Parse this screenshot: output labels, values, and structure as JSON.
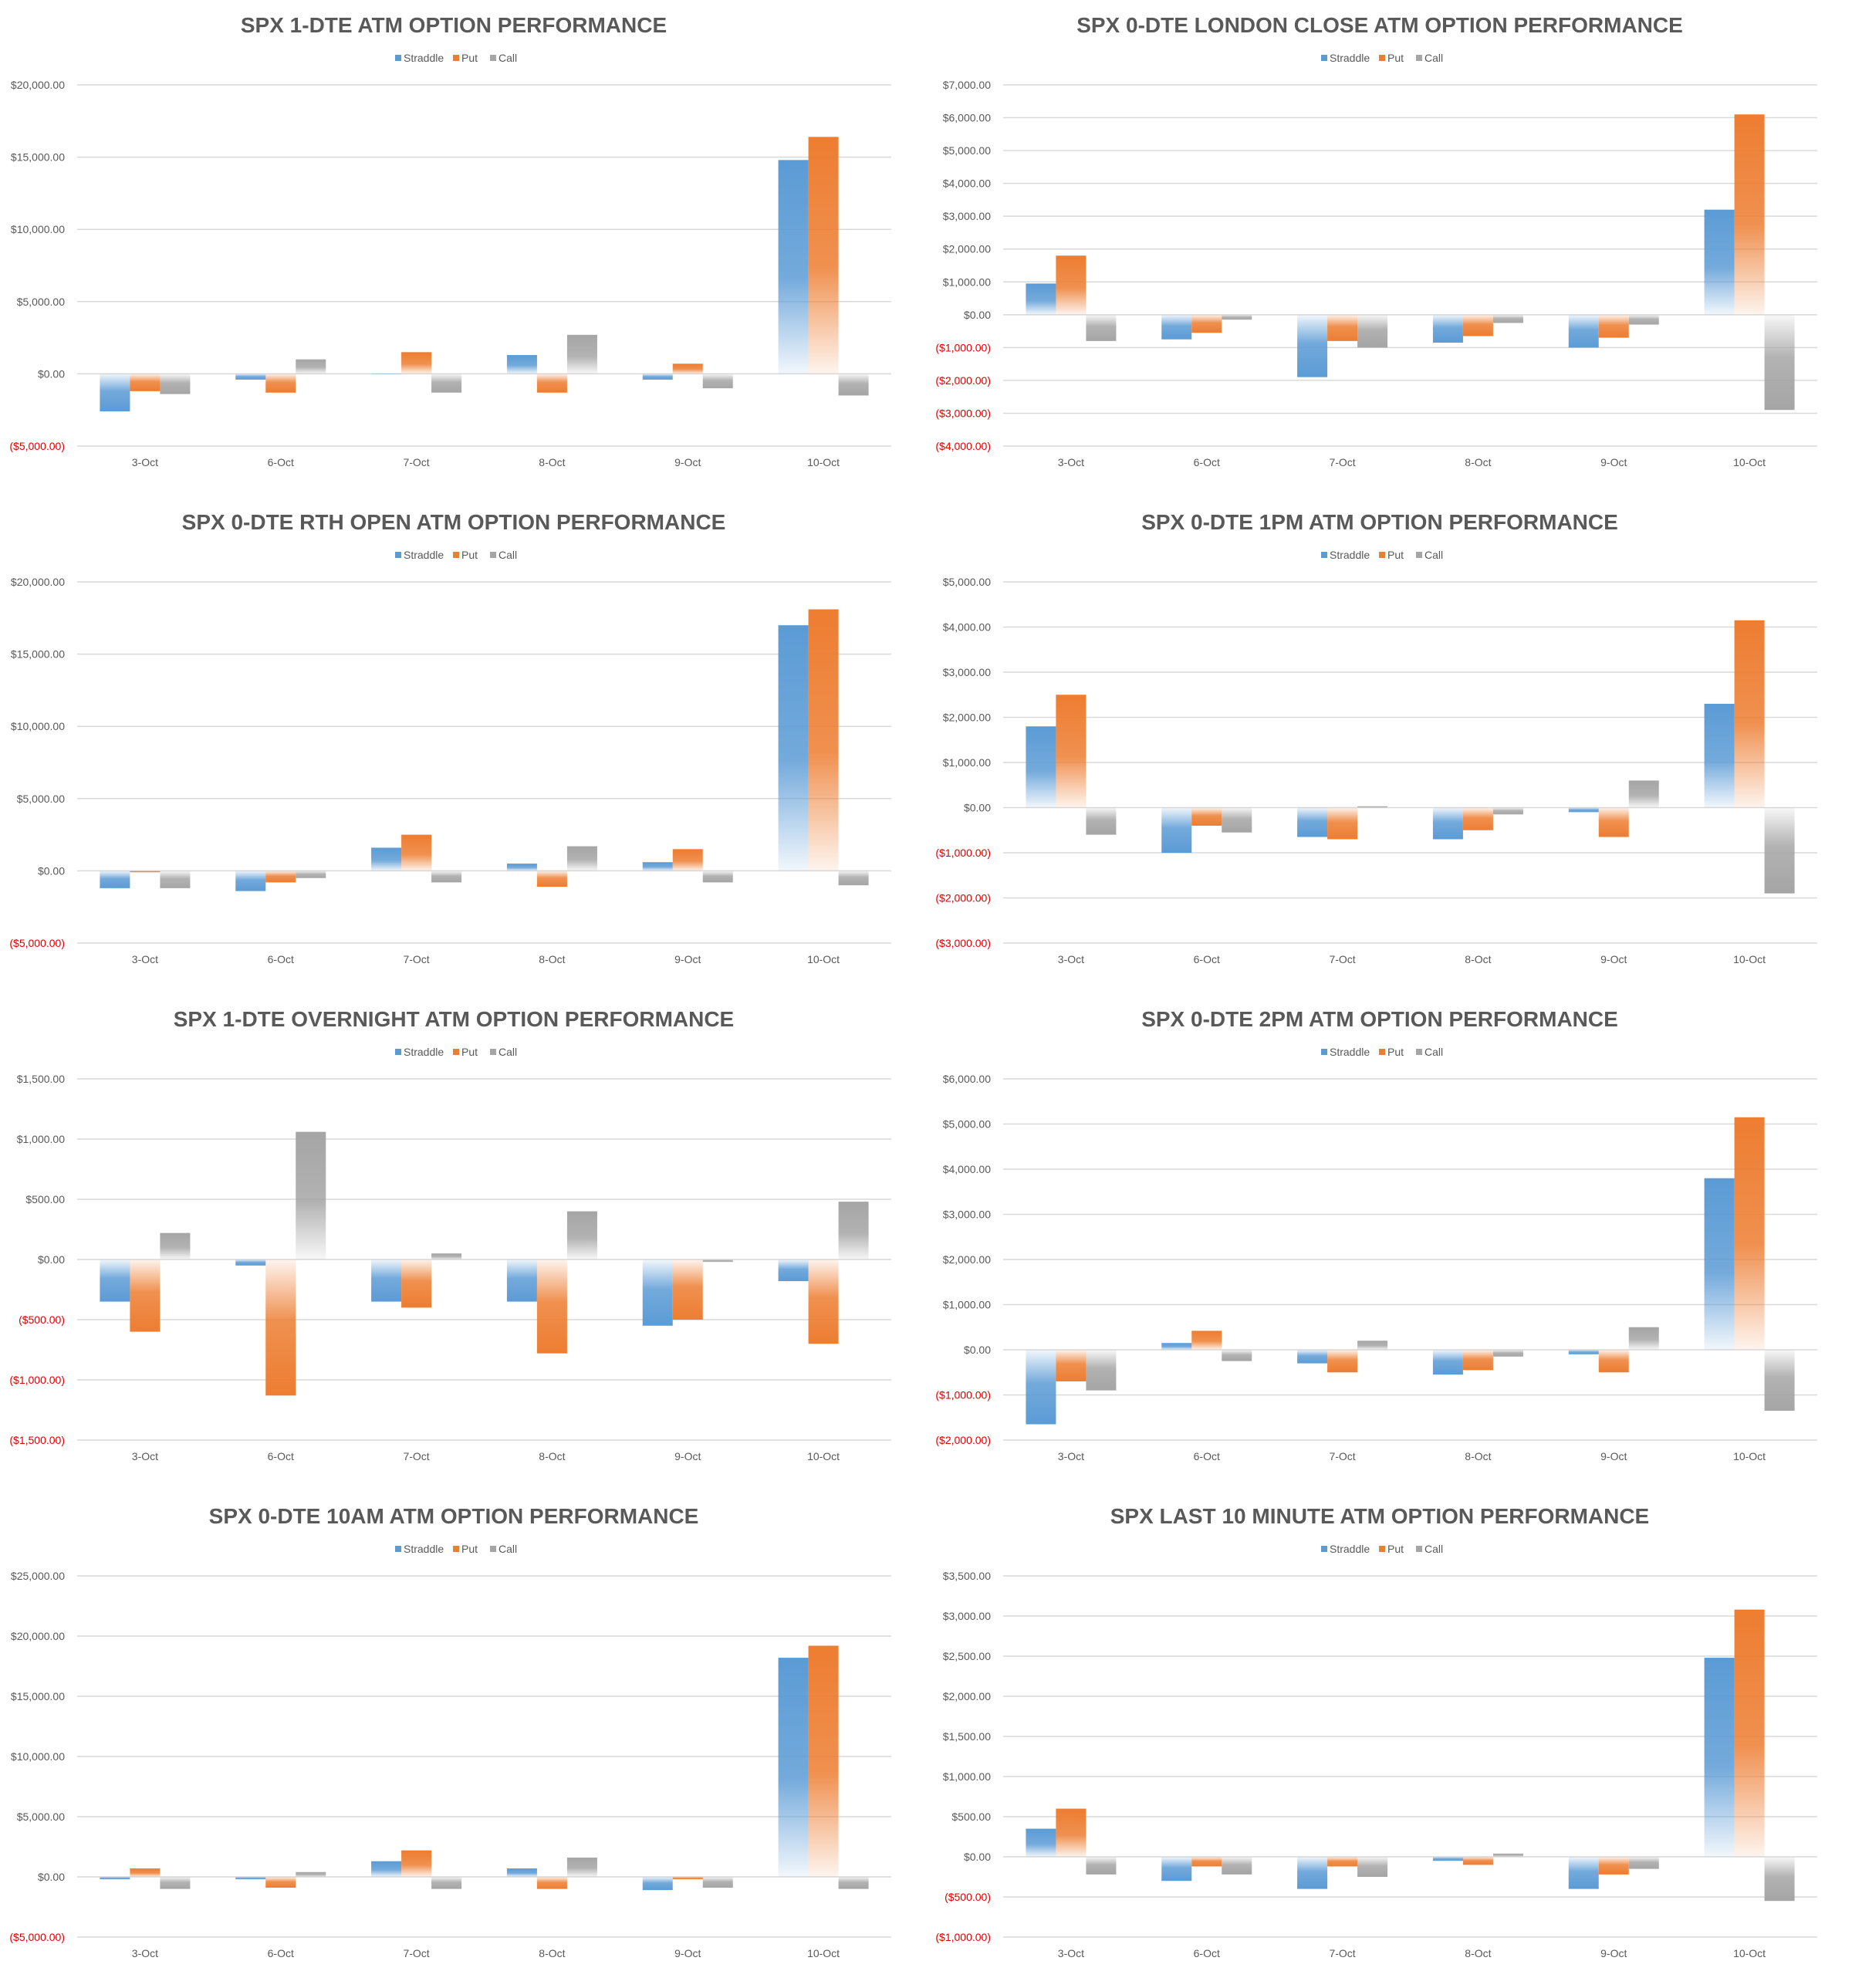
{
  "colors": {
    "straddle": "#5b9bd5",
    "put": "#ed7d31",
    "call": "#a5a5a5",
    "grid": "#d9d9d9",
    "text": "#595959",
    "negative": "#e00000"
  },
  "legend": [
    "Straddle",
    "Put",
    "Call"
  ],
  "chart_data": [
    {
      "type": "bar",
      "title": "SPX 1-DTE ATM OPTION PERFORMANCE",
      "categories": [
        "3-Oct",
        "6-Oct",
        "7-Oct",
        "8-Oct",
        "9-Oct",
        "10-Oct"
      ],
      "ylim": [
        -5000,
        20000
      ],
      "yticks": [
        20000,
        15000,
        10000,
        5000,
        0,
        -5000
      ],
      "ytick_labels": [
        "$20,000.00",
        "$15,000.00",
        "$10,000.00",
        "$5,000.00",
        "$0.00",
        "($5,000.00)"
      ],
      "series": [
        {
          "name": "Straddle",
          "values": [
            -2600,
            -400,
            0,
            1300,
            -400,
            14800
          ]
        },
        {
          "name": "Put",
          "values": [
            -1200,
            -1300,
            1500,
            -1300,
            700,
            16400
          ]
        },
        {
          "name": "Call",
          "values": [
            -1400,
            1000,
            -1300,
            2700,
            -1000,
            -1500
          ]
        }
      ]
    },
    {
      "type": "bar",
      "title": "SPX 0-DTE  LONDON CLOSE ATM OPTION PERFORMANCE",
      "categories": [
        "3-Oct",
        "6-Oct",
        "7-Oct",
        "8-Oct",
        "9-Oct",
        "10-Oct"
      ],
      "ylim": [
        -4000,
        7000
      ],
      "yticks": [
        7000,
        6000,
        5000,
        4000,
        3000,
        2000,
        1000,
        0,
        -1000,
        -2000,
        -3000,
        -4000
      ],
      "ytick_labels": [
        "$7,000.00",
        "$6,000.00",
        "$5,000.00",
        "$4,000.00",
        "$3,000.00",
        "$2,000.00",
        "$1,000.00",
        "$0.00",
        "($1,000.00)",
        "($2,000.00)",
        "($3,000.00)",
        "($4,000.00)"
      ],
      "series": [
        {
          "name": "Straddle",
          "values": [
            950,
            -750,
            -1900,
            -850,
            -1000,
            3200
          ]
        },
        {
          "name": "Put",
          "values": [
            1800,
            -550,
            -800,
            -650,
            -700,
            6100
          ]
        },
        {
          "name": "Call",
          "values": [
            -800,
            -150,
            -1000,
            -250,
            -300,
            -2900
          ]
        }
      ]
    },
    {
      "type": "bar",
      "title": "SPX 0-DTE RTH OPEN ATM OPTION PERFORMANCE",
      "categories": [
        "3-Oct",
        "6-Oct",
        "7-Oct",
        "8-Oct",
        "9-Oct",
        "10-Oct"
      ],
      "ylim": [
        -5000,
        20000
      ],
      "yticks": [
        20000,
        15000,
        10000,
        5000,
        0,
        -5000
      ],
      "ytick_labels": [
        "$20,000.00",
        "$15,000.00",
        "$10,000.00",
        "$5,000.00",
        "$0.00",
        "($5,000.00)"
      ],
      "series": [
        {
          "name": "Straddle",
          "values": [
            -1200,
            -1400,
            1600,
            500,
            600,
            17000
          ]
        },
        {
          "name": "Put",
          "values": [
            -100,
            -800,
            2500,
            -1100,
            1500,
            18100
          ]
        },
        {
          "name": "Call",
          "values": [
            -1200,
            -500,
            -800,
            1700,
            -800,
            -1000
          ]
        }
      ]
    },
    {
      "type": "bar",
      "title": "SPX 0-DTE 1PM ATM OPTION PERFORMANCE",
      "categories": [
        "3-Oct",
        "6-Oct",
        "7-Oct",
        "8-Oct",
        "9-Oct",
        "10-Oct"
      ],
      "ylim": [
        -3000,
        5000
      ],
      "yticks": [
        5000,
        4000,
        3000,
        2000,
        1000,
        0,
        -1000,
        -2000,
        -3000
      ],
      "ytick_labels": [
        "$5,000.00",
        "$4,000.00",
        "$3,000.00",
        "$2,000.00",
        "$1,000.00",
        "$0.00",
        "($1,000.00)",
        "($2,000.00)",
        "($3,000.00)"
      ],
      "series": [
        {
          "name": "Straddle",
          "values": [
            1800,
            -1000,
            -650,
            -700,
            -100,
            2300
          ]
        },
        {
          "name": "Put",
          "values": [
            2500,
            -400,
            -700,
            -500,
            -650,
            4150
          ]
        },
        {
          "name": "Call",
          "values": [
            -600,
            -550,
            30,
            -150,
            600,
            -1900
          ]
        }
      ]
    },
    {
      "type": "bar",
      "title": "SPX 1-DTE OVERNIGHT ATM OPTION PERFORMANCE",
      "categories": [
        "3-Oct",
        "6-Oct",
        "7-Oct",
        "8-Oct",
        "9-Oct",
        "10-Oct"
      ],
      "ylim": [
        -1500,
        1500
      ],
      "yticks": [
        1500,
        1000,
        500,
        0,
        -500,
        -1000,
        -1500
      ],
      "ytick_labels": [
        "$1,500.00",
        "$1,000.00",
        "$500.00",
        "$0.00",
        "($500.00)",
        "($1,000.00)",
        "($1,500.00)"
      ],
      "series": [
        {
          "name": "Straddle",
          "values": [
            -350,
            -50,
            -350,
            -350,
            -550,
            -180
          ]
        },
        {
          "name": "Put",
          "values": [
            -600,
            -1130,
            -400,
            -780,
            -500,
            -700
          ]
        },
        {
          "name": "Call",
          "values": [
            220,
            1060,
            50,
            400,
            -20,
            480
          ]
        }
      ]
    },
    {
      "type": "bar",
      "title": "SPX 0-DTE 2PM ATM OPTION PERFORMANCE",
      "categories": [
        "3-Oct",
        "6-Oct",
        "7-Oct",
        "8-Oct",
        "9-Oct",
        "10-Oct"
      ],
      "ylim": [
        -2000,
        6000
      ],
      "yticks": [
        6000,
        5000,
        4000,
        3000,
        2000,
        1000,
        0,
        -1000,
        -2000
      ],
      "ytick_labels": [
        "$6,000.00",
        "$5,000.00",
        "$4,000.00",
        "$3,000.00",
        "$2,000.00",
        "$1,000.00",
        "$0.00",
        "($1,000.00)",
        "($2,000.00)"
      ],
      "series": [
        {
          "name": "Straddle",
          "values": [
            -1650,
            150,
            -300,
            -550,
            -100,
            3800
          ]
        },
        {
          "name": "Put",
          "values": [
            -700,
            420,
            -500,
            -450,
            -500,
            5150
          ]
        },
        {
          "name": "Call",
          "values": [
            -900,
            -250,
            200,
            -150,
            500,
            -1350
          ]
        }
      ]
    },
    {
      "type": "bar",
      "title": "SPX 0-DTE 10AM ATM OPTION PERFORMANCE",
      "categories": [
        "3-Oct",
        "6-Oct",
        "7-Oct",
        "8-Oct",
        "9-Oct",
        "10-Oct"
      ],
      "ylim": [
        -5000,
        25000
      ],
      "yticks": [
        25000,
        20000,
        15000,
        10000,
        5000,
        0,
        -5000
      ],
      "ytick_labels": [
        "$25,000.00",
        "$20,000.00",
        "$15,000.00",
        "$10,000.00",
        "$5,000.00",
        "$0.00",
        "($5,000.00)"
      ],
      "series": [
        {
          "name": "Straddle",
          "values": [
            -200,
            -200,
            1300,
            700,
            -1100,
            18200
          ]
        },
        {
          "name": "Put",
          "values": [
            700,
            -900,
            2200,
            -1000,
            -200,
            19200
          ]
        },
        {
          "name": "Call",
          "values": [
            -1000,
            400,
            -1000,
            1600,
            -900,
            -1000
          ]
        }
      ]
    },
    {
      "type": "bar",
      "title": "SPX LAST 10 MINUTE ATM OPTION PERFORMANCE",
      "categories": [
        "3-Oct",
        "6-Oct",
        "7-Oct",
        "8-Oct",
        "9-Oct",
        "10-Oct"
      ],
      "ylim": [
        -1000,
        3500
      ],
      "yticks": [
        3500,
        3000,
        2500,
        2000,
        1500,
        1000,
        500,
        0,
        -500,
        -1000
      ],
      "ytick_labels": [
        "$3,500.00",
        "$3,000.00",
        "$2,500.00",
        "$2,000.00",
        "$1,500.00",
        "$1,000.00",
        "$500.00",
        "$0.00",
        "($500.00)",
        "($1,000.00)"
      ],
      "series": [
        {
          "name": "Straddle",
          "values": [
            350,
            -300,
            -400,
            -50,
            -400,
            2480
          ]
        },
        {
          "name": "Put",
          "values": [
            600,
            -120,
            -120,
            -100,
            -220,
            3080
          ]
        },
        {
          "name": "Call",
          "values": [
            -220,
            -220,
            -250,
            40,
            -150,
            -550
          ]
        }
      ]
    }
  ]
}
